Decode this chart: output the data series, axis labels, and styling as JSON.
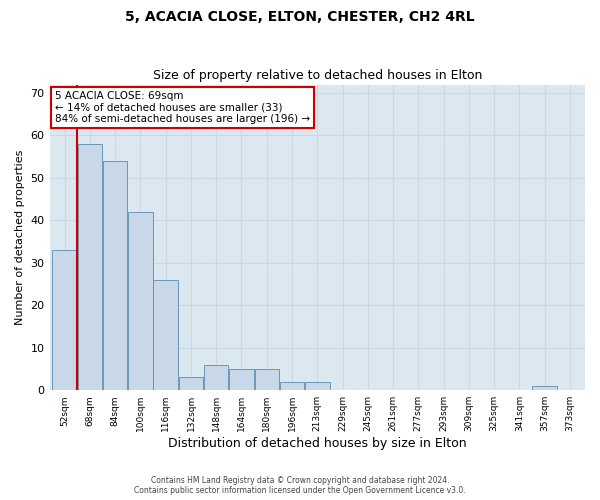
{
  "title1": "5, ACACIA CLOSE, ELTON, CHESTER, CH2 4RL",
  "title2": "Size of property relative to detached houses in Elton",
  "xlabel": "Distribution of detached houses by size in Elton",
  "ylabel": "Number of detached properties",
  "footer1": "Contains HM Land Registry data © Crown copyright and database right 2024.",
  "footer2": "Contains public sector information licensed under the Open Government Licence v3.0.",
  "bin_labels": [
    "52sqm",
    "68sqm",
    "84sqm",
    "100sqm",
    "116sqm",
    "132sqm",
    "148sqm",
    "164sqm",
    "180sqm",
    "196sqm",
    "213sqm",
    "229sqm",
    "245sqm",
    "261sqm",
    "277sqm",
    "293sqm",
    "309sqm",
    "325sqm",
    "341sqm",
    "357sqm",
    "373sqm"
  ],
  "bar_heights": [
    33,
    58,
    54,
    42,
    26,
    3,
    6,
    5,
    5,
    2,
    2,
    0,
    0,
    0,
    0,
    0,
    0,
    0,
    0,
    1,
    0
  ],
  "bar_color": "#c8d8e8",
  "bar_edge_color": "#5b8db0",
  "subject_line_color": "#cc0000",
  "annotation_text": "5 ACACIA CLOSE: 69sqm\n← 14% of detached houses are smaller (33)\n84% of semi-detached houses are larger (196) →",
  "annotation_box_facecolor": "#ffffff",
  "annotation_box_edgecolor": "#cc0000",
  "ylim": [
    0,
    72
  ],
  "yticks": [
    0,
    10,
    20,
    30,
    40,
    50,
    60,
    70
  ],
  "grid_color": "#c8d8e8",
  "bg_color": "#dce8f0"
}
